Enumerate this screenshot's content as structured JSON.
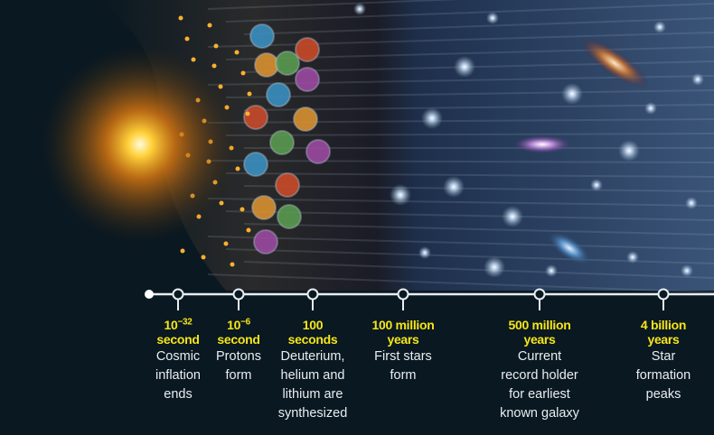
{
  "colors": {
    "background": "#0a1821",
    "accent_yellow": "#f5e51a",
    "text": "#e8eef2",
    "line": "#e8eef2"
  },
  "timeline": {
    "milestones": [
      {
        "time_base": "10",
        "time_exp": "−32",
        "time_unit": "second",
        "description": [
          "Cosmic",
          "inflation",
          "ends"
        ]
      },
      {
        "time_base": "10",
        "time_exp": "−6",
        "time_unit": "second",
        "description": [
          "Protons",
          "form"
        ]
      },
      {
        "time_base": "100",
        "time_exp": "",
        "time_unit": "seconds",
        "description": [
          "Deuterium,",
          "helium and",
          "lithium are",
          "synthesized"
        ]
      },
      {
        "time_base": "100 million",
        "time_exp": "",
        "time_unit": "years",
        "description": [
          "First stars",
          "form"
        ]
      },
      {
        "time_base": "500 million",
        "time_exp": "",
        "time_unit": "years",
        "description": [
          "Current",
          "record holder",
          "for earliest",
          "known galaxy"
        ]
      },
      {
        "time_base": "4 billion",
        "time_exp": "",
        "time_unit": "years",
        "description": [
          "Star",
          "formation",
          "peaks"
        ]
      }
    ]
  }
}
